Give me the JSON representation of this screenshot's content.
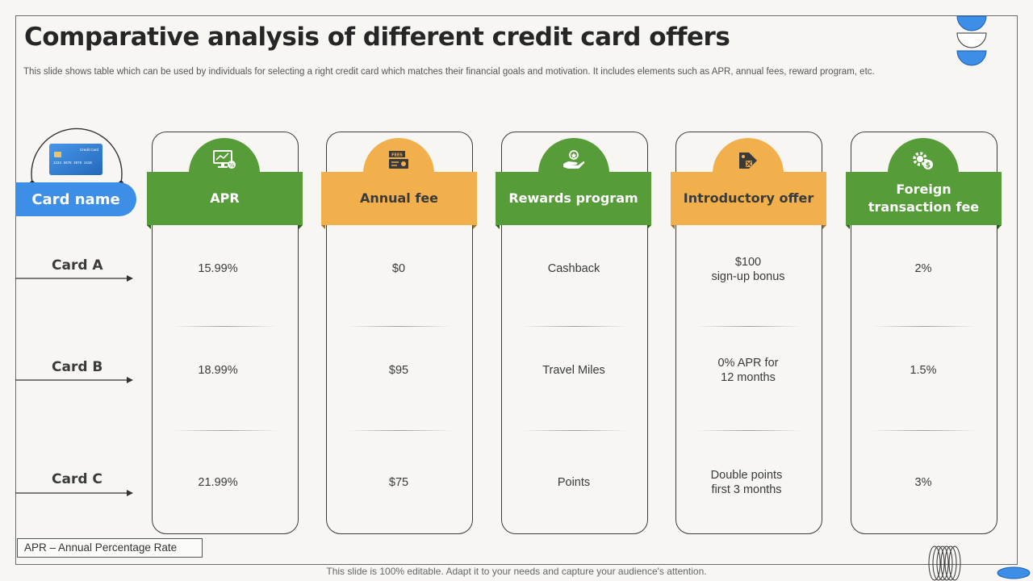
{
  "slide": {
    "title": "Comparative analysis of different credit card offers",
    "subtitle": "This slide shows table which can be used by individuals for selecting a right credit card which matches their financial goals and motivation. It includes elements such as APR, annual fees, reward program, etc.",
    "footnote": "APR – Annual Percentage Rate",
    "bottom_note": "This slide is 100% editable. Adapt it to your needs and capture your audience's attention."
  },
  "card_icon": {
    "label": "Credit Card",
    "number": "1234  5678  3678  1418"
  },
  "name_header": "Card name",
  "rows": [
    "Card A",
    "Card B",
    "Card C"
  ],
  "columns": [
    {
      "header": "APR",
      "color": "#569c38",
      "icon": "monitor-percent-icon",
      "values": [
        "15.99%",
        "18.99%",
        "21.99%"
      ]
    },
    {
      "header": "Annual fee",
      "color": "#f2b04d",
      "icon": "fees-icon",
      "values": [
        "$0",
        "$95",
        "$75"
      ]
    },
    {
      "header": "Rewards program",
      "color": "#569c38",
      "icon": "hand-gift-icon",
      "values": [
        "Cashback",
        "Travel Miles",
        "Points"
      ]
    },
    {
      "header": "Introductory offer",
      "color": "#f2b04d",
      "icon": "tag-offer-icon",
      "values": [
        [
          "$100",
          "sign-up bonus"
        ],
        [
          "0% APR for",
          "12 months"
        ],
        [
          "Double points",
          "first 3 months"
        ]
      ]
    },
    {
      "header_lines": [
        "Foreign",
        "transaction fee"
      ],
      "color": "#569c38",
      "icon": "gear-dollar-icon",
      "values": [
        "2%",
        "1.5%",
        "3%"
      ]
    }
  ],
  "colors": {
    "green": "#569c38",
    "orange": "#f2b04d",
    "blue": "#3d8ee6"
  }
}
